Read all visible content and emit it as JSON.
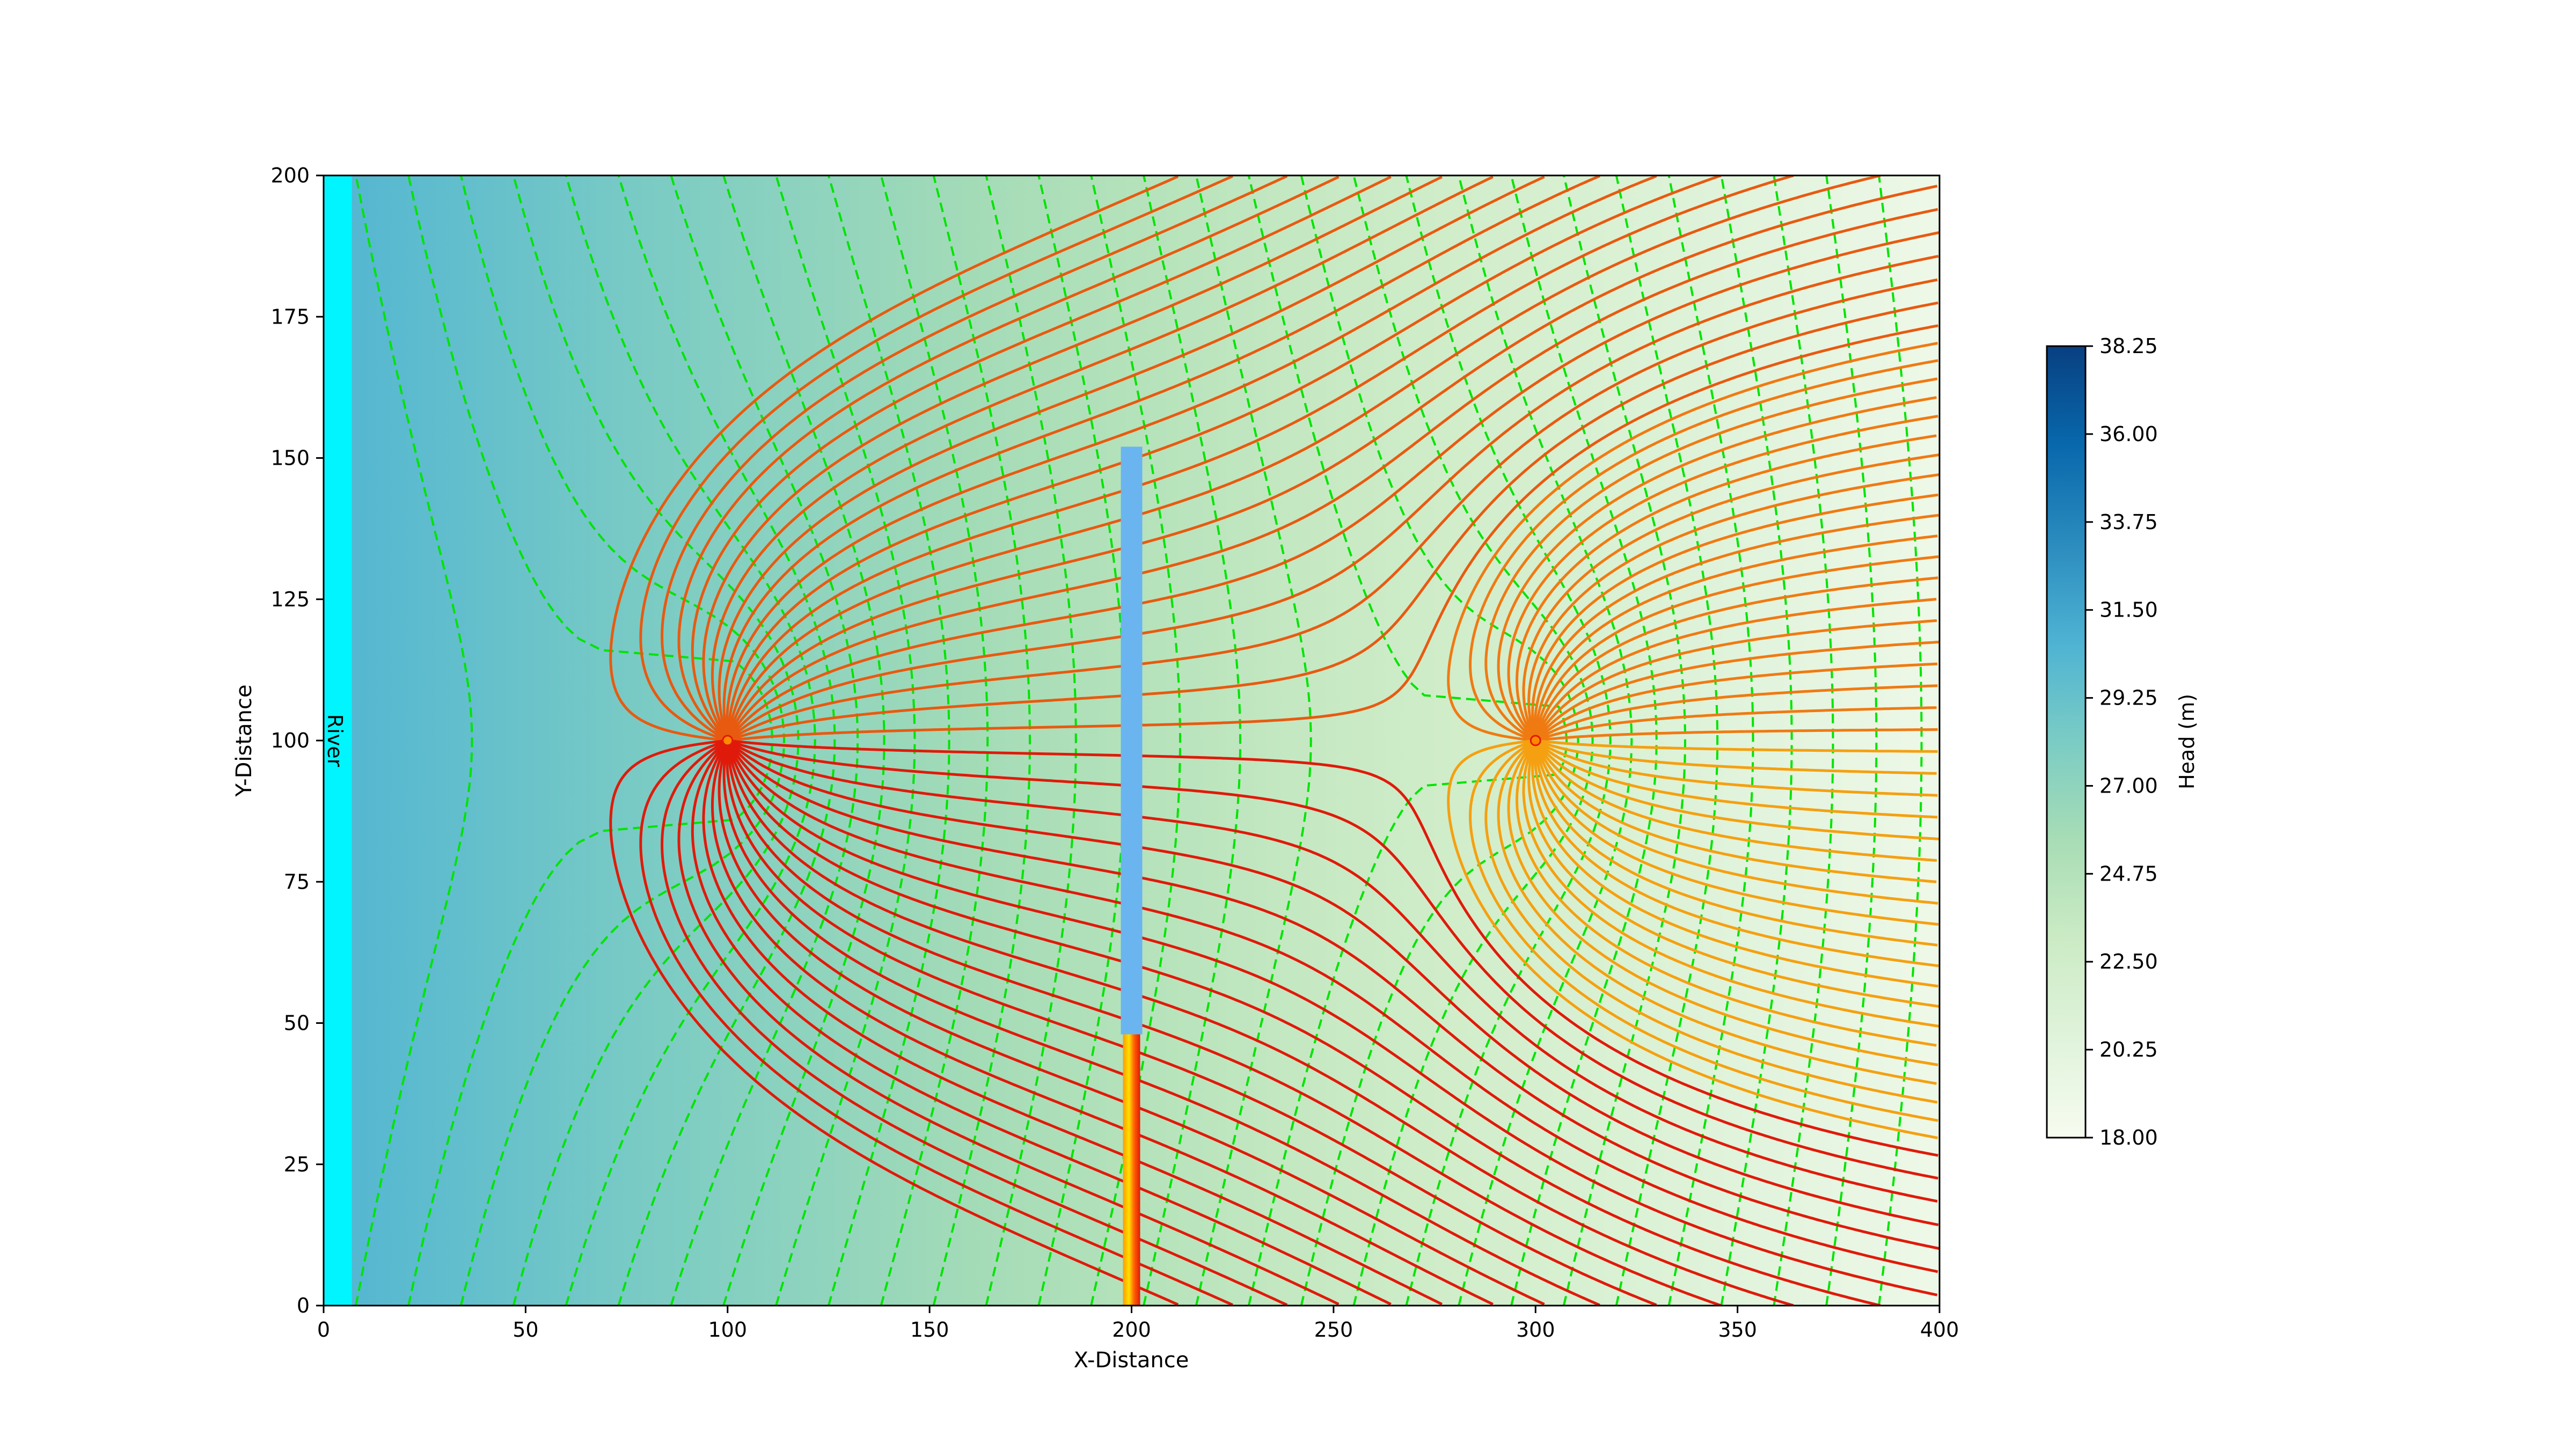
{
  "chart_data": {
    "type": "contour",
    "title": "",
    "xlabel": "X-Distance",
    "ylabel": "Y-Distance",
    "xlim": [
      0,
      400
    ],
    "ylim": [
      0,
      200
    ],
    "xticks": [
      0,
      50,
      100,
      150,
      200,
      250,
      300,
      350,
      400
    ],
    "yticks": [
      0,
      25,
      50,
      75,
      100,
      125,
      150,
      175,
      200
    ],
    "grid": false,
    "river": {
      "label": "River",
      "x_range": [
        0,
        7
      ],
      "color": "#00f5ff"
    },
    "wells": [
      {
        "x": 100,
        "y": 100
      },
      {
        "x": 300,
        "y": 100
      }
    ],
    "barrier": {
      "x": 200,
      "y_range": [
        48,
        152
      ],
      "color": "#6ab4f0"
    },
    "leaky_segment": {
      "x": 200,
      "y_range": [
        0,
        48
      ]
    },
    "head_field": {
      "left_head": 30.5,
      "right_head": 19.0
    },
    "colorbar": {
      "label": "Head (m)",
      "min": 18.0,
      "max": 38.25,
      "ticks": [
        "18.00",
        "20.25",
        "22.50",
        "24.75",
        "27.00",
        "29.25",
        "31.50",
        "33.75",
        "36.00",
        "38.25"
      ],
      "colors": [
        "#f7fcf0",
        "#e0f3db",
        "#ccebc5",
        "#a8ddb5",
        "#7bccc4",
        "#4eb3d3",
        "#2b8cbe",
        "#0868ac",
        "#084081"
      ]
    },
    "equipotential_style": {
      "color": "#00e400",
      "dash": "dashed"
    },
    "streamline_colors": [
      "#e01a0a",
      "#e85a10",
      "#f07a12",
      "#f5a010"
    ]
  }
}
